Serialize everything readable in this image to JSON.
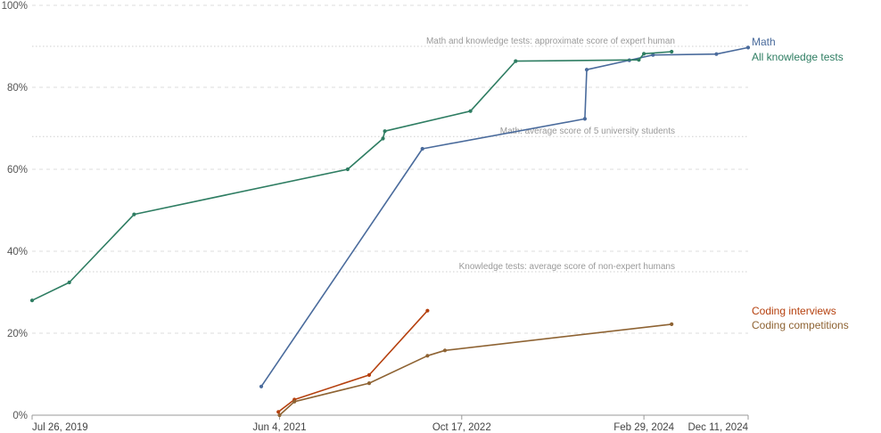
{
  "chart_data": {
    "type": "line",
    "title": "",
    "xlabel": "",
    "ylabel": "",
    "x_axis": {
      "type": "date",
      "range": [
        "2019-07-26",
        "2024-12-11"
      ],
      "tick_labels": [
        {
          "date": "2019-07-26",
          "label": "Jul 26, 2019"
        },
        {
          "date": "2021-06-04",
          "label": "Jun 4, 2021"
        },
        {
          "date": "2022-10-17",
          "label": "Oct 17, 2022"
        },
        {
          "date": "2024-02-29",
          "label": "Feb 29, 2024"
        },
        {
          "date": "2024-12-11",
          "label": "Dec 11, 2024"
        }
      ]
    },
    "y_axis": {
      "range": [
        0,
        100
      ],
      "unit": "%",
      "ticks": [
        {
          "value": 0,
          "label": "0%"
        },
        {
          "value": 20,
          "label": "20%"
        },
        {
          "value": 40,
          "label": "40%"
        },
        {
          "value": 60,
          "label": "60%"
        },
        {
          "value": 80,
          "label": "80%"
        },
        {
          "value": 100,
          "label": "100%"
        }
      ]
    },
    "grid": true,
    "legend": "direct labels at right end of lines",
    "reference_lines": [
      {
        "label": "Math and knowledge tests: approximate score of expert human",
        "y": 90
      },
      {
        "label": "Math: average score of 5 university students",
        "y": 68
      },
      {
        "label": "Knowledge tests: average score of non-expert humans",
        "y": 35
      }
    ],
    "series": [
      {
        "name": "Math",
        "color": "#4a6b9c",
        "points": [
          {
            "x": "2021-04-15",
            "y": 7
          },
          {
            "x": "2022-07-01",
            "y": 65
          },
          {
            "x": "2023-09-20",
            "y": 72.3
          },
          {
            "x": "2023-09-25",
            "y": 84.3
          },
          {
            "x": "2024-01-20",
            "y": 86.6
          },
          {
            "x": "2024-03-25",
            "y": 87.9
          },
          {
            "x": "2024-09-15",
            "y": 88.1
          },
          {
            "x": "2024-12-11",
            "y": 89.7
          }
        ]
      },
      {
        "name": "All knowledge tests",
        "color": "#2e7d62",
        "points": [
          {
            "x": "2019-07-26",
            "y": 28
          },
          {
            "x": "2019-11-05",
            "y": 32.4
          },
          {
            "x": "2020-05-01",
            "y": 49
          },
          {
            "x": "2021-12-08",
            "y": 60
          },
          {
            "x": "2022-03-15",
            "y": 67.5
          },
          {
            "x": "2022-03-20",
            "y": 69.3
          },
          {
            "x": "2022-11-10",
            "y": 74.2
          },
          {
            "x": "2023-03-14",
            "y": 86.4
          },
          {
            "x": "2024-02-15",
            "y": 86.7
          },
          {
            "x": "2024-02-29",
            "y": 88.2
          },
          {
            "x": "2024-05-15",
            "y": 88.7
          }
        ]
      },
      {
        "name": "Coding interviews",
        "color": "#b5400e",
        "points": [
          {
            "x": "2021-06-01",
            "y": 0.8
          },
          {
            "x": "2021-07-15",
            "y": 3.8
          },
          {
            "x": "2022-02-05",
            "y": 9.8
          },
          {
            "x": "2022-07-15",
            "y": 25.5
          }
        ]
      },
      {
        "name": "Coding competitions",
        "color": "#8e6333",
        "points": [
          {
            "x": "2021-06-04",
            "y": 0
          },
          {
            "x": "2021-07-15",
            "y": 3.3
          },
          {
            "x": "2022-02-05",
            "y": 7.8
          },
          {
            "x": "2022-07-15",
            "y": 14.5
          },
          {
            "x": "2022-09-01",
            "y": 15.8
          },
          {
            "x": "2024-05-15",
            "y": 22.2
          }
        ]
      }
    ]
  },
  "series_labels": {
    "math": "Math",
    "knowledge": "All knowledge tests",
    "coding_interviews": "Coding interviews",
    "coding_competitions": "Coding competitions"
  }
}
